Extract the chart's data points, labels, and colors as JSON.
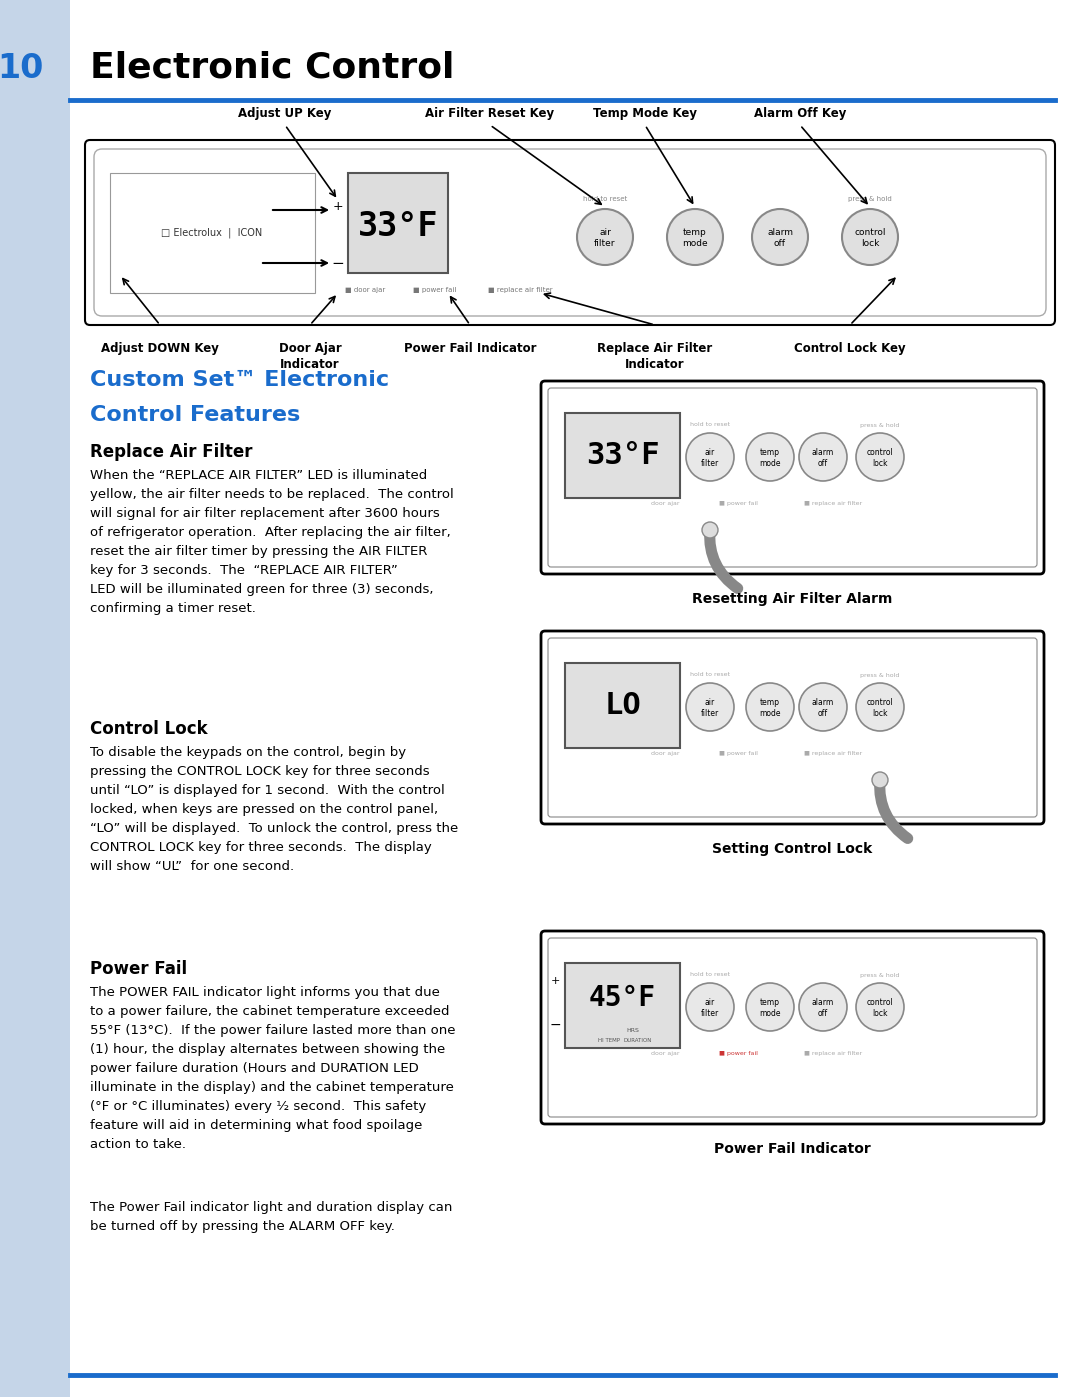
{
  "page_title_num": "10",
  "page_title_text": "Electronic Control",
  "page_bg": "#ffffff",
  "sidebar_color": "#c5d5e8",
  "header_line_color": "#1a6ccc",
  "bottom_line_color": "#1a6ccc",
  "title_blue": "#1a6ccc",
  "custom_set_title_line1": "Custom Set™ Electronic",
  "custom_set_title_line2": "Control Features",
  "replace_air_filter_heading": "Replace Air Filter",
  "replace_air_filter_body": "When the “REPLACE AIR FILTER” LED is illuminated\nyellow, the air filter needs to be replaced.  The control\nwill signal for air filter replacement after 3600 hours\nof refrigerator operation.  After replacing the air filter,\nreset the air filter timer by pressing the AIR FILTER\nkey for 3 seconds.  The  “REPLACE AIR FILTER”\nLED will be illuminated green for three (3) seconds,\nconfirming a timer reset.",
  "control_lock_heading": "Control Lock",
  "control_lock_body": "To disable the keypads on the control, begin by\npressing the CONTROL LOCK key for three seconds\nuntil “LO” is displayed for 1 second.  With the control\nlocked, when keys are pressed on the control panel,\n“LO” will be displayed.  To unlock the control, press the\nCONTROL LOCK key for three seconds.  The display\nwill show “UL”  for one second.",
  "power_fail_heading": "Power Fail",
  "power_fail_body1": "The POWER FAIL indicator light informs you that due\nto a power failure, the cabinet temperature exceeded\n55°F (13°C).  If the power failure lasted more than one\n(1) hour, the display alternates between showing the\npower failure duration (Hours and DURATION LED\nilluminate in the display) and the cabinet temperature\n(°F or °C illuminates) every ½ second.  This safety\nfeature will aid in determining what food spoilage\naction to take.",
  "power_fail_body2": "The Power Fail indicator light and duration display can\nbe turned off by pressing the ALARM OFF key.",
  "fig1_caption": "Resetting Air Filter Alarm",
  "fig2_caption": "Setting Control Lock",
  "fig3_caption": "Power Fail Indicator"
}
